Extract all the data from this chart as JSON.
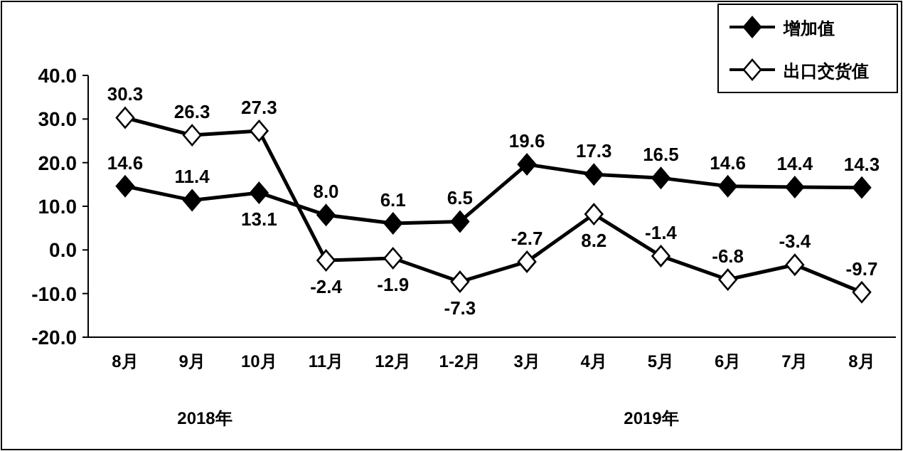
{
  "chart_data": {
    "type": "line",
    "categories": [
      "8月",
      "9月",
      "10月",
      "11月",
      "12月",
      "1-2月",
      "3月",
      "4月",
      "5月",
      "6月",
      "7月",
      "8月"
    ],
    "series": [
      {
        "name": "增加值",
        "color": "#000000",
        "marker": "diamond",
        "values": [
          14.6,
          11.4,
          13.1,
          8.0,
          6.1,
          6.5,
          19.6,
          17.3,
          16.5,
          14.6,
          14.4,
          14.3
        ],
        "value_labels": [
          "14.6",
          "11.4",
          "13.1",
          "8.0",
          "6.1",
          "6.5",
          "19.6",
          "17.3",
          "16.5",
          "14.6",
          "14.4",
          "14.3"
        ]
      },
      {
        "name": "出口交货值",
        "color": "#000000",
        "marker": "diamond",
        "values": [
          30.3,
          26.3,
          27.3,
          -2.4,
          -1.9,
          -7.3,
          -2.7,
          8.2,
          -1.4,
          -6.8,
          -3.4,
          -9.7
        ],
        "value_labels": [
          "30.3",
          "26.3",
          "27.3",
          "-2.4",
          "-1.9",
          "-7.3",
          "-2.7",
          "8.2",
          "-1.4",
          "-6.8",
          "-3.4",
          "-9.7"
        ]
      }
    ],
    "ylim": [
      -20,
      40
    ],
    "yticks": [
      {
        "value": 40,
        "label": "40.0"
      },
      {
        "value": 30,
        "label": "30.0"
      },
      {
        "value": 20,
        "label": "20.0"
      },
      {
        "value": 10,
        "label": "10.0"
      },
      {
        "value": 0,
        "label": "0.0"
      },
      {
        "value": -10,
        "label": "-10.0"
      },
      {
        "value": -20,
        "label": "-20.0"
      }
    ],
    "annotations": [
      "2018年",
      "2019年"
    ],
    "legend": "top right",
    "grid": false,
    "line_style": "solid"
  }
}
